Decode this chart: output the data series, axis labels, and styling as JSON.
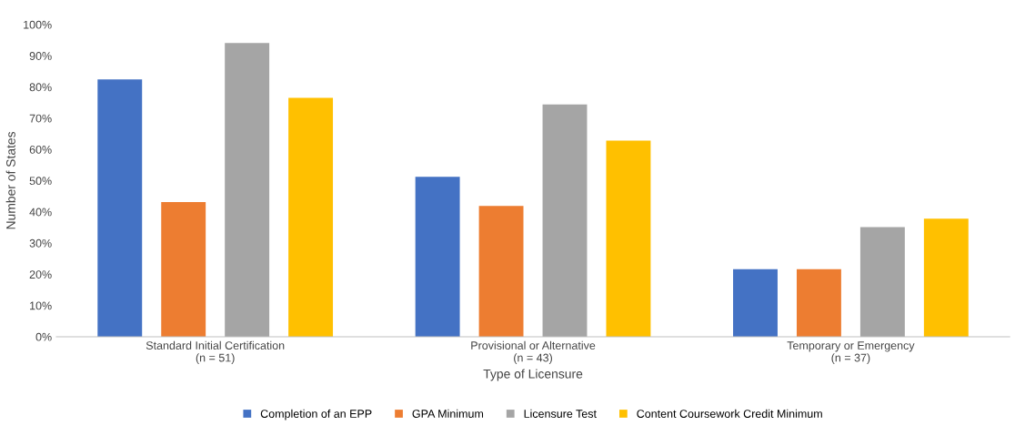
{
  "chart_data": {
    "type": "bar",
    "xlabel": "Type of Licensure",
    "ylabel": "Number of States",
    "categories": [
      "Standard Initial Certification\n(n = 51)",
      "Provisional or Alternative\n(n = 43)",
      "Temporary or Emergency\n(n = 37)"
    ],
    "series": [
      {
        "name": "Completion of an EPP",
        "color": "#4472c4",
        "values": [
          82.4,
          51.2,
          21.6
        ]
      },
      {
        "name": "GPA Minimum",
        "color": "#ed7d31",
        "values": [
          43.1,
          41.9,
          21.6
        ]
      },
      {
        "name": "Licensure Test",
        "color": "#a5a5a5",
        "values": [
          94.1,
          74.4,
          35.1
        ]
      },
      {
        "name": "Content Coursework Credit Minimum",
        "color": "#ffc000",
        "values": [
          76.5,
          62.8,
          37.8
        ]
      }
    ],
    "ylim": [
      0,
      100
    ],
    "yticks": [
      {
        "value": 0,
        "label": "0%"
      },
      {
        "value": 10,
        "label": "10%"
      },
      {
        "value": 20,
        "label": "20%"
      },
      {
        "value": 30,
        "label": "30%"
      },
      {
        "value": 40,
        "label": "40%"
      },
      {
        "value": 50,
        "label": "50%"
      },
      {
        "value": 60,
        "label": "60%"
      },
      {
        "value": 70,
        "label": "70%"
      },
      {
        "value": 80,
        "label": "80%"
      },
      {
        "value": 90,
        "label": "90%"
      },
      {
        "value": 100,
        "label": "100%"
      }
    ],
    "grid": false,
    "legend": "bottom"
  }
}
